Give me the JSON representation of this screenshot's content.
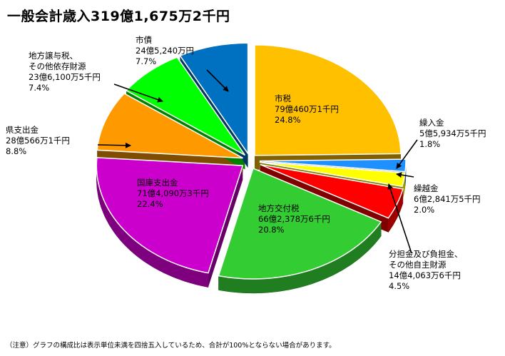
{
  "title": "一般会計歳入319億1,675万2千円",
  "note": "（注意）グラフの構成比は表示単位未満を四捨五入しているため、合計が100%とならない場合があります。",
  "chart_data": {
    "type": "pie",
    "title": "一般会計歳入319億1,675万2千円",
    "slices": [
      {
        "name": "市税",
        "amount": "79億460万1千円",
        "percent": "24.8%",
        "value": 24.8,
        "color": "#FFC000"
      },
      {
        "name": "繰入金",
        "amount": "5億5,934万5千円",
        "percent": "1.8%",
        "value": 1.8,
        "color": "#1E90FF"
      },
      {
        "name": "繰越金",
        "amount": "6億2,841万5千円",
        "percent": "2.0%",
        "value": 2.0,
        "color": "#FFFF00"
      },
      {
        "name": "分担金及び負担金、その他自主財源",
        "amount": "14億4,063万6千円",
        "percent": "4.5%",
        "value": 4.5,
        "color": "#FF0000"
      },
      {
        "name": "地方交付税",
        "amount": "66億2,378万6千円",
        "percent": "20.8%",
        "value": 20.8,
        "color": "#33CC33"
      },
      {
        "name": "国庫支出金",
        "amount": "71億4,090万3千円",
        "percent": "22.4%",
        "value": 22.4,
        "color": "#CC00CC"
      },
      {
        "name": "県支出金",
        "amount": "28億566万1千円",
        "percent": "8.8%",
        "value": 8.8,
        "color": "#FF9900"
      },
      {
        "name": "地方譲与税、その他依存財源",
        "amount": "23億6,100万5千円",
        "percent": "7.4%",
        "value": 7.4,
        "color": "#00FF00"
      },
      {
        "name": "市債",
        "amount": "24億5,240万円",
        "percent": "7.7%",
        "value": 7.7,
        "color": "#0070C0"
      }
    ],
    "labels": [
      {
        "lines": [
          "市税",
          "79億460万1千円",
          "24.8%"
        ]
      },
      {
        "lines": [
          "繰入金",
          "5億5,934万5千円",
          "1.8%"
        ]
      },
      {
        "lines": [
          "繰越金",
          "6億2,841万5千円",
          "2.0%"
        ]
      },
      {
        "lines": [
          "分担金及び負担金、",
          "その他自主財源",
          "14億4,063万6千円",
          "4.5%"
        ]
      },
      {
        "lines": [
          "地方交付税",
          "66億2,378万6千円",
          "20.8%"
        ]
      },
      {
        "lines": [
          "国庫支出金",
          "71億4,090万3千円",
          "22.4%"
        ]
      },
      {
        "lines": [
          "県支出金",
          "28億566万1千円",
          "8.8%"
        ]
      },
      {
        "lines": [
          "地方譲与税、",
          "その他依存財源",
          "23億6,100万5千円",
          "7.4%"
        ]
      },
      {
        "lines": [
          "市債",
          "24億5,240万円",
          "7.7%"
        ]
      }
    ]
  }
}
